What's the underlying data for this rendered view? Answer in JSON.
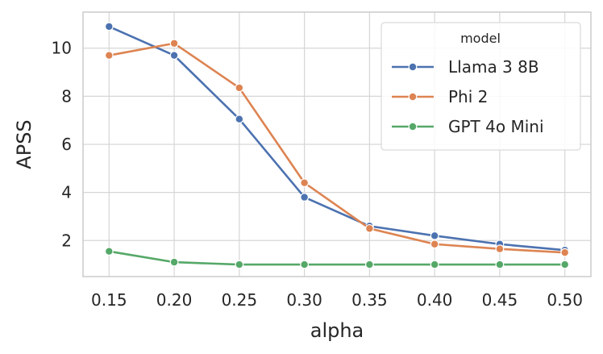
{
  "chart_data": {
    "type": "line",
    "title": "",
    "xlabel": "alpha",
    "ylabel": "APSS",
    "x": [
      0.15,
      0.2,
      0.25,
      0.3,
      0.35,
      0.4,
      0.45,
      0.5
    ],
    "x_tick_labels": [
      "0.15",
      "0.20",
      "0.25",
      "0.30",
      "0.35",
      "0.40",
      "0.45",
      "0.50"
    ],
    "y_ticks": [
      2,
      4,
      6,
      8,
      10
    ],
    "y_tick_labels": [
      "2",
      "4",
      "6",
      "8",
      "10"
    ],
    "xlim": [
      0.13,
      0.52
    ],
    "ylim": [
      0.5,
      11.5
    ],
    "grid": true,
    "legend": {
      "title": "model",
      "placement": "top-right"
    },
    "series": [
      {
        "name": "Llama 3 8B",
        "color": "#4c72b0",
        "values": [
          10.9,
          9.7,
          7.05,
          3.8,
          2.6,
          2.2,
          1.85,
          1.6
        ]
      },
      {
        "name": "Phi 2",
        "color": "#dd8452",
        "values": [
          9.7,
          10.2,
          8.35,
          4.4,
          2.5,
          1.85,
          1.65,
          1.5
        ]
      },
      {
        "name": "GPT 4o Mini",
        "color": "#55a868",
        "values": [
          1.55,
          1.1,
          1.0,
          1.0,
          1.0,
          1.0,
          1.0,
          1.0
        ]
      }
    ]
  }
}
